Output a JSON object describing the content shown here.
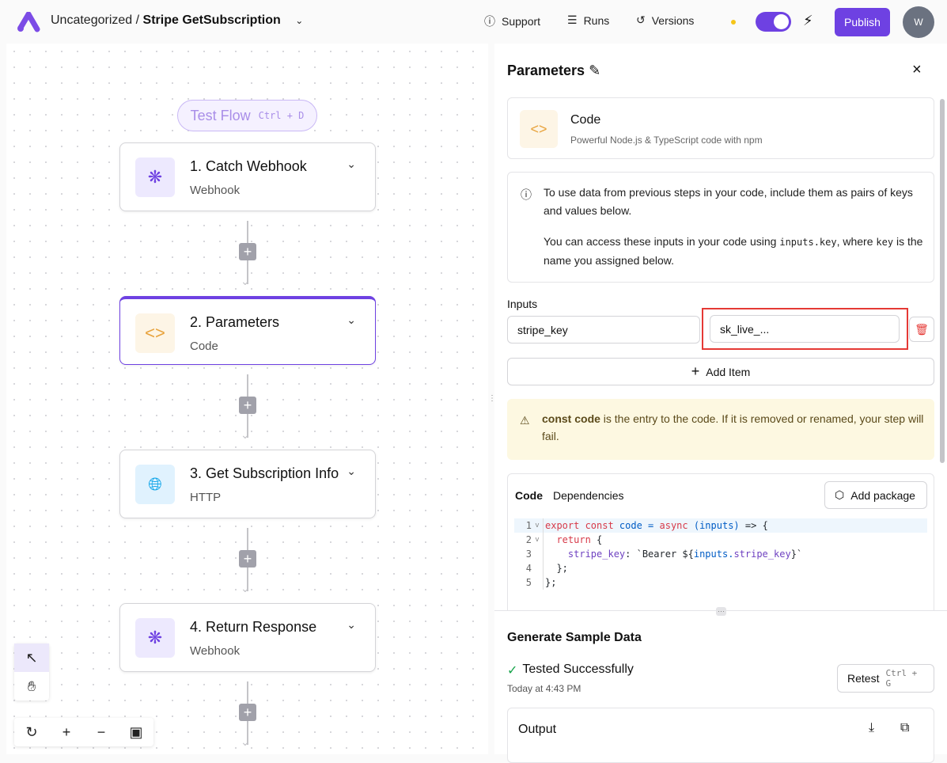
{
  "header": {
    "category": "Uncategorized",
    "separator": "/",
    "flow_name": "Stripe GetSubscription",
    "support": "Support",
    "runs": "Runs",
    "versions": "Versions",
    "publish": "Publish",
    "avatar": "W"
  },
  "canvas": {
    "test_flow": "Test Flow",
    "test_flow_shortcut": "Ctrl + D",
    "nodes": [
      {
        "title": "1. Catch Webhook",
        "subtitle": "Webhook",
        "icon": "webhook-icon"
      },
      {
        "title": "2. Parameters",
        "subtitle": "Code",
        "icon": "code-icon"
      },
      {
        "title": "3. Get Subscription Info",
        "subtitle": "HTTP",
        "icon": "globe-icon"
      },
      {
        "title": "4. Return Response",
        "subtitle": "Webhook",
        "icon": "webhook-icon"
      }
    ]
  },
  "panel": {
    "title": "Parameters",
    "piece_name": "Code",
    "piece_desc": "Powerful Node.js & TypeScript code with npm",
    "info_1": "To use data from previous steps in your code, include them as pairs of keys and values below.",
    "info_2a": "You can access these inputs in your code using ",
    "info_2code": "inputs.key",
    "info_2b": ", where ",
    "info_2code2": "key",
    "info_2c": " is the name you assigned below.",
    "inputs_label": "Inputs",
    "input_key": "stripe_key",
    "input_value": "sk_live_...",
    "add_item": "Add Item",
    "warn_bold": "const code",
    "warn_text": " is the entry to the code. If it is removed or renamed, your step will fail.",
    "tab_code": "Code",
    "tab_deps": "Dependencies",
    "add_package": "Add package",
    "code_lines": [
      [
        [
          "kw",
          "export const "
        ],
        [
          "fn",
          "code = "
        ],
        [
          "kw",
          "async "
        ],
        [
          "fn",
          "(inputs) "
        ],
        [
          "tx",
          "=> {"
        ]
      ],
      [
        [
          "tx",
          "  "
        ],
        [
          "kw",
          "return "
        ],
        [
          "tx",
          "{"
        ]
      ],
      [
        [
          "tx",
          "    "
        ],
        [
          "pr",
          "stripe_key"
        ],
        [
          "tx",
          ": `Bearer ${"
        ],
        [
          "fn",
          "inputs."
        ],
        [
          "pr",
          "stripe_key"
        ],
        [
          "tx",
          "}`"
        ]
      ],
      [
        [
          "tx",
          "  };"
        ]
      ],
      [
        [
          "tx",
          "};"
        ]
      ]
    ],
    "sample_title": "Generate Sample Data",
    "tested": "Tested Successfully",
    "tested_time": "Today at 4:43 PM",
    "retest": "Retest",
    "retest_shortcut": "Ctrl + G",
    "output": "Output"
  },
  "colors": {
    "accent": "#6e41e2",
    "highlight": "#e53935",
    "warn_bg": "#fdf8e1"
  }
}
